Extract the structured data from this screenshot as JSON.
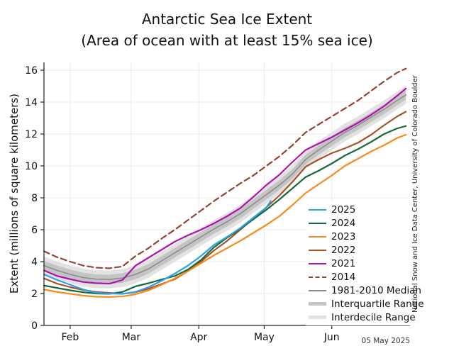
{
  "title": "Antarctic Sea Ice Extent",
  "subtitle": "(Area of ocean with at least 15% sea ice)",
  "ylabel": "Extent (millions of square kilometers)",
  "credit": "National Snow and Ice Data Center, University of Colorado Boulder",
  "datestamp": "05 May 2025",
  "legend": {
    "items": [
      {
        "label": "2025",
        "swatch": "line",
        "color": "#2f9fe8"
      },
      {
        "label": "2024",
        "swatch": "line",
        "color": "#186a3a"
      },
      {
        "label": "2023",
        "swatch": "line",
        "color": "#f88b1e"
      },
      {
        "label": "2022",
        "swatch": "line",
        "color": "#a85325"
      },
      {
        "label": "2021",
        "swatch": "line",
        "color": "#ad14ad"
      },
      {
        "label": "2014",
        "swatch": "dashed",
        "color": "#96422e"
      },
      {
        "label": "1981-2010 Median",
        "swatch": "line",
        "color": "#8c8c8c"
      },
      {
        "label": "Interquartile Range",
        "swatch": "band",
        "color": "#c4c4c4"
      },
      {
        "label": "Interdecile Range",
        "swatch": "band",
        "color": "#e2e2e2"
      }
    ]
  },
  "chart_data": {
    "type": "line",
    "title": "Antarctic Sea Ice Extent (Area of ocean with at least 15% sea ice)",
    "xlabel": "",
    "ylabel": "Extent (millions of square kilometers)",
    "x_unit": "days since 20 Jan",
    "xlim_days": [
      0,
      168
    ],
    "ylim": [
      0,
      16.5
    ],
    "grid": true,
    "legend_position": "center-right",
    "yticks": [
      0,
      2,
      4,
      6,
      8,
      10,
      12,
      14,
      16
    ],
    "xticks": [
      {
        "label": "Feb",
        "day": 12
      },
      {
        "label": "Mar",
        "day": 40
      },
      {
        "label": "Apr",
        "day": 71
      },
      {
        "label": "May",
        "day": 101
      },
      {
        "label": "Jun",
        "day": 132
      }
    ],
    "days": [
      0,
      6,
      12,
      18,
      24,
      30,
      36,
      42,
      48,
      54,
      60,
      66,
      72,
      78,
      84,
      90,
      96,
      102,
      108,
      114,
      120,
      126,
      132,
      138,
      144,
      150,
      156,
      162,
      166
    ],
    "series": [
      {
        "name": "2025",
        "color": "#2f9fe8",
        "style": "solid",
        "days": [
          0,
          6,
          12,
          18,
          24,
          30,
          36,
          42,
          48,
          54,
          60,
          66,
          72,
          78,
          84,
          90,
          96,
          102,
          104
        ],
        "values": [
          3.2,
          2.85,
          2.55,
          2.25,
          2.05,
          2.0,
          1.98,
          2.1,
          2.4,
          2.8,
          3.25,
          3.75,
          4.35,
          5.05,
          5.55,
          6.1,
          6.75,
          7.4,
          7.8
        ]
      },
      {
        "name": "2024",
        "color": "#186a3a",
        "style": "solid",
        "values": [
          2.5,
          2.35,
          2.2,
          2.08,
          2.0,
          1.98,
          2.1,
          2.45,
          2.65,
          2.88,
          3.1,
          3.5,
          4.1,
          4.9,
          5.5,
          6.05,
          6.65,
          7.25,
          7.9,
          8.6,
          9.3,
          9.7,
          10.15,
          10.65,
          11.05,
          11.5,
          12.0,
          12.35,
          12.5
        ]
      },
      {
        "name": "2023",
        "color": "#f88b1e",
        "style": "solid",
        "values": [
          2.25,
          2.1,
          1.98,
          1.87,
          1.8,
          1.78,
          1.82,
          1.95,
          2.2,
          2.55,
          2.95,
          3.4,
          3.9,
          4.4,
          4.85,
          5.3,
          5.8,
          6.3,
          6.85,
          7.55,
          8.3,
          8.85,
          9.4,
          10.0,
          10.45,
          10.9,
          11.3,
          11.75,
          11.95
        ]
      },
      {
        "name": "2022",
        "color": "#a85325",
        "style": "solid",
        "values": [
          2.95,
          2.62,
          2.4,
          2.22,
          2.1,
          2.04,
          1.98,
          2.08,
          2.3,
          2.6,
          2.9,
          3.4,
          4.0,
          4.7,
          5.3,
          6.0,
          6.7,
          7.4,
          8.15,
          9.0,
          9.95,
          10.4,
          10.8,
          11.1,
          11.45,
          11.95,
          12.55,
          13.1,
          13.4
        ]
      },
      {
        "name": "2021",
        "color": "#ad14ad",
        "style": "solid",
        "values": [
          3.45,
          3.1,
          2.9,
          2.72,
          2.65,
          2.62,
          2.85,
          3.75,
          4.25,
          4.75,
          5.25,
          5.65,
          6.0,
          6.4,
          6.85,
          7.35,
          8.05,
          8.8,
          9.45,
          10.25,
          11.0,
          11.4,
          11.8,
          12.25,
          12.7,
          13.2,
          13.75,
          14.4,
          14.85
        ]
      },
      {
        "name": "2014",
        "color": "#96422e",
        "style": "dashed",
        "values": [
          4.65,
          4.28,
          4.0,
          3.75,
          3.62,
          3.58,
          3.7,
          4.35,
          4.85,
          5.45,
          6.0,
          6.6,
          7.2,
          7.8,
          8.35,
          8.9,
          9.4,
          10.0,
          10.6,
          11.3,
          12.1,
          12.6,
          13.1,
          13.6,
          14.1,
          14.7,
          15.3,
          15.85,
          16.1
        ]
      },
      {
        "name": "1981-2010 Median",
        "color": "#8c8c8c",
        "style": "solid",
        "values": [
          3.75,
          3.45,
          3.2,
          3.0,
          2.9,
          2.88,
          2.97,
          3.2,
          3.55,
          4.05,
          4.55,
          5.05,
          5.55,
          6.05,
          6.5,
          7.0,
          7.6,
          8.2,
          8.8,
          9.5,
          10.4,
          11.0,
          11.55,
          12.1,
          12.55,
          13.05,
          13.55,
          14.1,
          14.45
        ]
      }
    ],
    "bands": [
      {
        "name": "Interdecile Range",
        "around": "1981-2010 Median",
        "half_width": 0.56,
        "color": "#e2e2e2"
      },
      {
        "name": "Interquartile Range",
        "around": "1981-2010 Median",
        "half_width": 0.3,
        "color": "#c4c4c4"
      }
    ]
  }
}
